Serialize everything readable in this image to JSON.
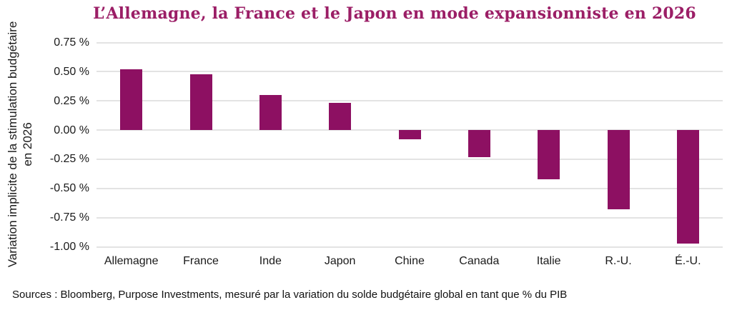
{
  "chart_data": {
    "type": "bar",
    "title": "L’Allemagne, la France et le Japon en mode expansionniste en 2026",
    "ylabel": "Variation implicite de la stimulation budgétaire en 2026",
    "xlabel": "",
    "categories": [
      "Allemagne",
      "France",
      "Inde",
      "Japon",
      "Chine",
      "Canada",
      "Italie",
      "R.-U.",
      "É.-U."
    ],
    "values": [
      0.52,
      0.48,
      0.3,
      0.23,
      -0.08,
      -0.23,
      -0.42,
      -0.68,
      -0.97
    ],
    "unit": "%",
    "ylim": [
      -1.0,
      0.75
    ],
    "ytick_values": [
      0.75,
      0.5,
      0.25,
      0.0,
      -0.25,
      -0.5,
      -0.75,
      -1.0
    ],
    "ytick_labels": [
      "0.75 %",
      "0.50 %",
      "0.25 %",
      "0.00 %",
      "-0.25 %",
      "-0.50 %",
      "-0.75 %",
      "-1.00 %"
    ],
    "grid": true,
    "legend": false
  },
  "footer": {
    "text": "Sources : Bloomberg, Purpose Investments, mesuré par la variation du solde budgétaire global en tant que % du PIB"
  },
  "colors": {
    "bar": "#8D1062",
    "title": "#9B1E66",
    "gridline": "#E3E3E3",
    "text": "#1A1A1A"
  }
}
